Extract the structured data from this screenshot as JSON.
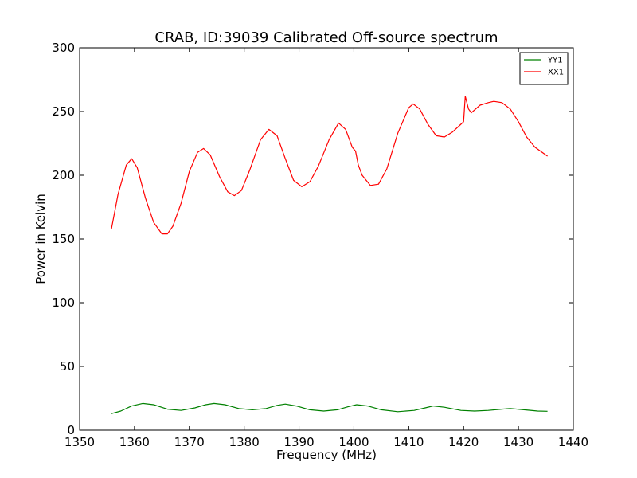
{
  "chart_data": {
    "type": "line",
    "title": "CRAB, ID:39039 Calibrated Off-source spectrum",
    "xlabel": "Frequency (MHz)",
    "ylabel": "Power in Kelvin",
    "xlim": [
      1350,
      1440
    ],
    "ylim": [
      0,
      300
    ],
    "xticks": [
      1350,
      1360,
      1370,
      1380,
      1390,
      1400,
      1410,
      1420,
      1430,
      1440
    ],
    "yticks": [
      0,
      50,
      100,
      150,
      200,
      250,
      300
    ],
    "xtick_labels": [
      "1350",
      "1360",
      "1370",
      "1380",
      "1390",
      "1400",
      "1410",
      "1420",
      "1430",
      "1440"
    ],
    "ytick_labels": [
      "0",
      "50",
      "100",
      "150",
      "200",
      "250",
      "300"
    ],
    "grid": false,
    "legend_position": "top-right",
    "series": [
      {
        "name": "YY1",
        "color": "#008000",
        "x": [
          1355.8,
          1357.5,
          1359.5,
          1361.5,
          1363.5,
          1366.0,
          1368.5,
          1371.0,
          1373.0,
          1374.5,
          1376.5,
          1379.0,
          1381.5,
          1384.0,
          1386.0,
          1387.5,
          1389.5,
          1392.0,
          1394.5,
          1397.0,
          1399.0,
          1400.5,
          1402.5,
          1405.0,
          1408.0,
          1411.0,
          1413.0,
          1414.5,
          1416.5,
          1419.5,
          1422.0,
          1424.5,
          1427.0,
          1428.5,
          1431.0,
          1433.5,
          1435.3
        ],
        "y": [
          13,
          15,
          19,
          21,
          20,
          16.5,
          15.5,
          17.5,
          20,
          21,
          20,
          17,
          16,
          17,
          19.5,
          20.5,
          19,
          16,
          15,
          16,
          18.5,
          20,
          19,
          16,
          14.5,
          15.5,
          17.5,
          19,
          18,
          15.5,
          15,
          15.5,
          16.5,
          17,
          16,
          15,
          14.8
        ]
      },
      {
        "name": "XX1",
        "color": "#ff0000",
        "x": [
          1355.8,
          1357.0,
          1358.5,
          1359.5,
          1360.5,
          1362.0,
          1363.5,
          1365.0,
          1366.0,
          1367.0,
          1368.5,
          1370.0,
          1371.5,
          1372.6,
          1373.8,
          1375.5,
          1377.0,
          1378.2,
          1379.5,
          1381.0,
          1383.0,
          1384.5,
          1386.0,
          1387.5,
          1389.0,
          1390.5,
          1392.0,
          1393.5,
          1395.5,
          1397.2,
          1398.5,
          1399.7,
          1400.3,
          1400.8,
          1401.5,
          1403.0,
          1404.5,
          1406.0,
          1408.0,
          1410.0,
          1410.8,
          1412.0,
          1413.5,
          1415.0,
          1416.5,
          1418.0,
          1419.5,
          1420.0,
          1420.3,
          1420.9,
          1421.4,
          1423.0,
          1424.5,
          1425.5,
          1427.0,
          1428.5,
          1430.0,
          1431.5,
          1433.0,
          1435.3
        ],
        "y": [
          158,
          185,
          208,
          213,
          206,
          182,
          163,
          154,
          154,
          160,
          178,
          203,
          218,
          221,
          216,
          199,
          187,
          184,
          188,
          204,
          228,
          236,
          231,
          213,
          196,
          191,
          195,
          207,
          228,
          241,
          236,
          222,
          219,
          208,
          200,
          192,
          193,
          205,
          233,
          253,
          256,
          252,
          240,
          231,
          230,
          234,
          240,
          242,
          262,
          252,
          249,
          255,
          257,
          258,
          257,
          252,
          242,
          230,
          222,
          215
        ]
      }
    ]
  }
}
